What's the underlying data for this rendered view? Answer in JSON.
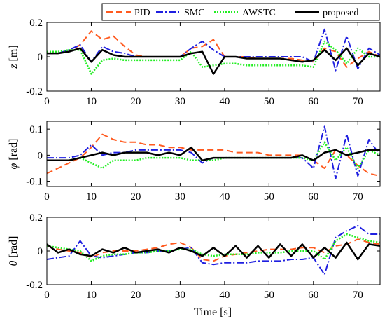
{
  "chart_data": {
    "type": "line",
    "xlabel": "Time [s]",
    "xlim": [
      0,
      75
    ],
    "xticks": [
      0,
      10,
      20,
      30,
      40,
      50,
      60,
      70
    ],
    "legend": {
      "placement": "top",
      "entries": [
        "PID",
        "SMC",
        "AWSTC",
        "proposed"
      ]
    },
    "series_styles": [
      {
        "name": "PID",
        "color": "#ff5a1f",
        "dash": "dashed"
      },
      {
        "name": "SMC",
        "color": "#1f1fe0",
        "dash": "dashdot"
      },
      {
        "name": "AWSTC",
        "color": "#22ee22",
        "dash": "dotted"
      },
      {
        "name": "proposed",
        "color": "#000000",
        "dash": "solid"
      }
    ],
    "panels": [
      {
        "id": "z",
        "ylabel_symbol": "z",
        "ylabel_unit": "[m]",
        "ylim": [
          -0.2,
          0.2
        ],
        "yticks": [
          -0.2,
          0,
          0.2
        ],
        "grid": false,
        "x": [
          0,
          2.5,
          5,
          7.5,
          10,
          12.5,
          15,
          17.5,
          20,
          22.5,
          25,
          27.5,
          30,
          32.5,
          35,
          37.5,
          40,
          42.5,
          45,
          47.5,
          50,
          52.5,
          55,
          57.5,
          60,
          62.5,
          65,
          67.5,
          70,
          72.5,
          75
        ],
        "series": [
          {
            "name": "PID",
            "values": [
              0.02,
              0.02,
              0.03,
              0.07,
              0.15,
              0.1,
              0.12,
              0.06,
              0.01,
              0.0,
              0.0,
              0.0,
              0.0,
              0.05,
              0.06,
              0.1,
              0.0,
              0.0,
              0.0,
              -0.01,
              -0.01,
              -0.01,
              -0.01,
              -0.02,
              -0.03,
              0.05,
              0.03,
              -0.06,
              -0.01,
              0.03,
              0.0
            ]
          },
          {
            "name": "SMC",
            "values": [
              0.02,
              0.02,
              0.04,
              0.07,
              -0.03,
              0.06,
              0.03,
              0.02,
              0.0,
              0.0,
              0.0,
              0.0,
              0.0,
              0.05,
              0.09,
              0.04,
              0.0,
              0.0,
              0.0,
              0.0,
              0.0,
              0.0,
              0.0,
              0.0,
              -0.03,
              0.16,
              -0.08,
              0.12,
              -0.07,
              0.05,
              0.01
            ]
          },
          {
            "name": "AWSTC",
            "values": [
              0.03,
              0.03,
              0.04,
              0.04,
              -0.1,
              -0.02,
              -0.01,
              -0.02,
              -0.02,
              -0.02,
              -0.02,
              -0.02,
              -0.02,
              0.03,
              -0.06,
              -0.05,
              -0.04,
              -0.04,
              -0.05,
              -0.05,
              -0.05,
              -0.05,
              -0.05,
              -0.05,
              -0.06,
              0.09,
              0.04,
              -0.04,
              0.05,
              0.0,
              0.0
            ]
          },
          {
            "name": "proposed",
            "values": [
              0.02,
              0.02,
              0.03,
              0.05,
              -0.03,
              0.04,
              0.01,
              0.0,
              0.0,
              0.0,
              0.0,
              0.0,
              0.0,
              0.02,
              0.03,
              -0.1,
              0.0,
              0.0,
              -0.01,
              -0.01,
              -0.01,
              -0.01,
              -0.02,
              -0.03,
              -0.02,
              0.04,
              -0.02,
              0.05,
              -0.05,
              0.02,
              0.0
            ]
          }
        ]
      },
      {
        "id": "phi",
        "ylabel_symbol": "φ",
        "ylabel_unit": "[rad]",
        "ylim": [
          -0.12,
          0.13
        ],
        "yticks": [
          -0.1,
          0,
          0.1
        ],
        "grid": false,
        "x": [
          0,
          2.5,
          5,
          7.5,
          10,
          12.5,
          15,
          17.5,
          20,
          22.5,
          25,
          27.5,
          30,
          32.5,
          35,
          37.5,
          40,
          42.5,
          45,
          47.5,
          50,
          52.5,
          55,
          57.5,
          60,
          62.5,
          65,
          67.5,
          70,
          72.5,
          75
        ],
        "series": [
          {
            "name": "PID",
            "values": [
              -0.07,
              -0.05,
              -0.03,
              -0.01,
              0.03,
              0.08,
              0.06,
              0.05,
              0.05,
              0.04,
              0.04,
              0.03,
              0.03,
              0.02,
              0.02,
              0.02,
              0.02,
              0.01,
              0.01,
              0.01,
              0.0,
              0.0,
              0.0,
              0.0,
              -0.02,
              -0.05,
              0.02,
              0.0,
              -0.04,
              -0.07,
              -0.08
            ]
          },
          {
            "name": "SMC",
            "values": [
              -0.01,
              -0.01,
              -0.01,
              0.0,
              0.04,
              0.0,
              0.01,
              0.01,
              0.02,
              0.02,
              0.02,
              0.02,
              0.02,
              0.01,
              -0.03,
              -0.01,
              -0.01,
              -0.01,
              -0.01,
              -0.01,
              -0.01,
              -0.01,
              -0.01,
              -0.01,
              -0.05,
              0.11,
              -0.09,
              0.08,
              -0.08,
              0.06,
              0.0
            ]
          },
          {
            "name": "AWSTC",
            "values": [
              -0.02,
              -0.02,
              -0.02,
              -0.01,
              -0.03,
              -0.05,
              -0.02,
              -0.02,
              -0.02,
              -0.01,
              -0.01,
              -0.01,
              -0.01,
              -0.02,
              -0.02,
              -0.02,
              -0.01,
              -0.01,
              -0.01,
              -0.01,
              -0.01,
              -0.01,
              -0.01,
              -0.01,
              -0.02,
              0.05,
              -0.02,
              0.03,
              -0.05,
              0.02,
              0.0
            ]
          },
          {
            "name": "proposed",
            "values": [
              -0.02,
              -0.02,
              -0.02,
              -0.01,
              0.0,
              0.01,
              0.0,
              0.01,
              0.01,
              0.01,
              0.0,
              0.01,
              0.0,
              0.03,
              -0.02,
              -0.01,
              -0.01,
              -0.01,
              -0.01,
              -0.01,
              -0.01,
              -0.01,
              -0.01,
              0.0,
              -0.02,
              0.01,
              0.02,
              0.0,
              0.01,
              0.02,
              0.02
            ]
          }
        ]
      },
      {
        "id": "theta",
        "ylabel_symbol": "θ",
        "ylabel_unit": "[rad]",
        "ylim": [
          -0.2,
          0.2
        ],
        "yticks": [
          -0.2,
          0,
          0.2
        ],
        "grid": false,
        "x": [
          0,
          2.5,
          5,
          7.5,
          10,
          12.5,
          15,
          17.5,
          20,
          22.5,
          25,
          27.5,
          30,
          32.5,
          35,
          37.5,
          40,
          42.5,
          45,
          47.5,
          50,
          52.5,
          55,
          57.5,
          60,
          62.5,
          65,
          67.5,
          70,
          72.5,
          75
        ],
        "series": [
          {
            "name": "PID",
            "values": [
              0.03,
              0.01,
              0.0,
              -0.01,
              -0.04,
              -0.01,
              0.0,
              0.0,
              0.0,
              0.01,
              0.02,
              0.04,
              0.05,
              0.02,
              -0.05,
              -0.06,
              -0.03,
              -0.02,
              -0.01,
              0.0,
              0.01,
              0.01,
              0.01,
              0.02,
              0.02,
              -0.01,
              0.03,
              0.04,
              0.07,
              0.05,
              0.04
            ]
          },
          {
            "name": "SMC",
            "values": [
              -0.05,
              -0.04,
              -0.03,
              0.06,
              -0.03,
              -0.04,
              -0.03,
              -0.02,
              -0.01,
              -0.01,
              0.0,
              0.0,
              0.01,
              0.02,
              -0.07,
              -0.08,
              -0.07,
              -0.07,
              -0.07,
              -0.06,
              -0.06,
              -0.06,
              -0.05,
              -0.05,
              -0.04,
              -0.14,
              0.08,
              0.12,
              0.15,
              0.1,
              0.1
            ]
          },
          {
            "name": "AWSTC",
            "values": [
              0.03,
              0.02,
              0.01,
              0.0,
              -0.06,
              -0.03,
              -0.02,
              -0.02,
              -0.01,
              -0.01,
              0.0,
              0.0,
              0.01,
              0.01,
              -0.02,
              -0.03,
              -0.02,
              -0.02,
              -0.02,
              -0.01,
              -0.01,
              -0.01,
              0.0,
              0.0,
              0.0,
              -0.05,
              0.06,
              0.1,
              0.08,
              0.06,
              0.05
            ]
          },
          {
            "name": "proposed",
            "values": [
              0.04,
              -0.01,
              0.01,
              -0.02,
              -0.03,
              0.01,
              -0.01,
              0.02,
              -0.01,
              0.0,
              0.01,
              -0.01,
              0.02,
              0.0,
              -0.03,
              0.02,
              -0.03,
              0.03,
              -0.04,
              0.03,
              -0.04,
              0.04,
              -0.03,
              0.04,
              -0.04,
              0.02,
              -0.04,
              0.05,
              -0.05,
              0.04,
              0.03
            ]
          }
        ]
      }
    ]
  }
}
